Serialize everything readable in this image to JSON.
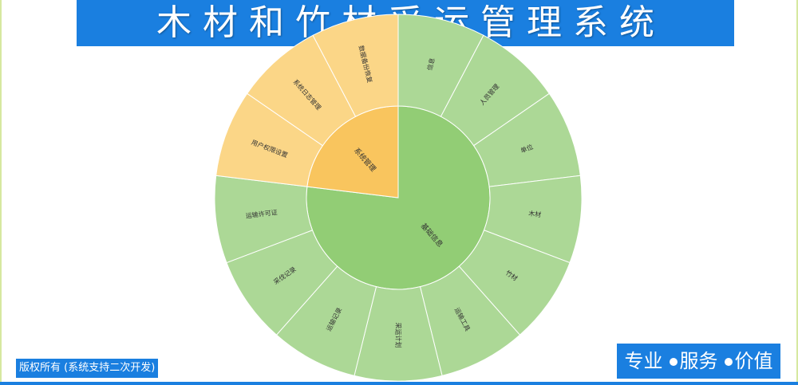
{
  "header": {
    "title": "木材和竹材采运管理系统"
  },
  "chart_data": {
    "type": "sunburst",
    "colors": {
      "inner_green": "#92cd75",
      "outer_green": "#acd896",
      "inner_orange": "#f9c55e",
      "outer_orange": "#fbd687",
      "border": "#ffffff"
    },
    "groups": [
      {
        "name": "基础信息",
        "color": "green",
        "children": [
          "信息",
          "人员管理",
          "单位",
          "木材",
          "竹材",
          "运输工具",
          "采运计划",
          "运输记录",
          "采伐记录",
          "运输许可证"
        ]
      },
      {
        "name": "系统管理",
        "color": "orange",
        "children": [
          "用户权限设置",
          "系统日志管理",
          "数据备份恢复"
        ]
      }
    ]
  },
  "footer": {
    "copyright": "版权所有 (系统支持二次开发)",
    "slogan_items": [
      "专业",
      "服务",
      "价值"
    ]
  }
}
